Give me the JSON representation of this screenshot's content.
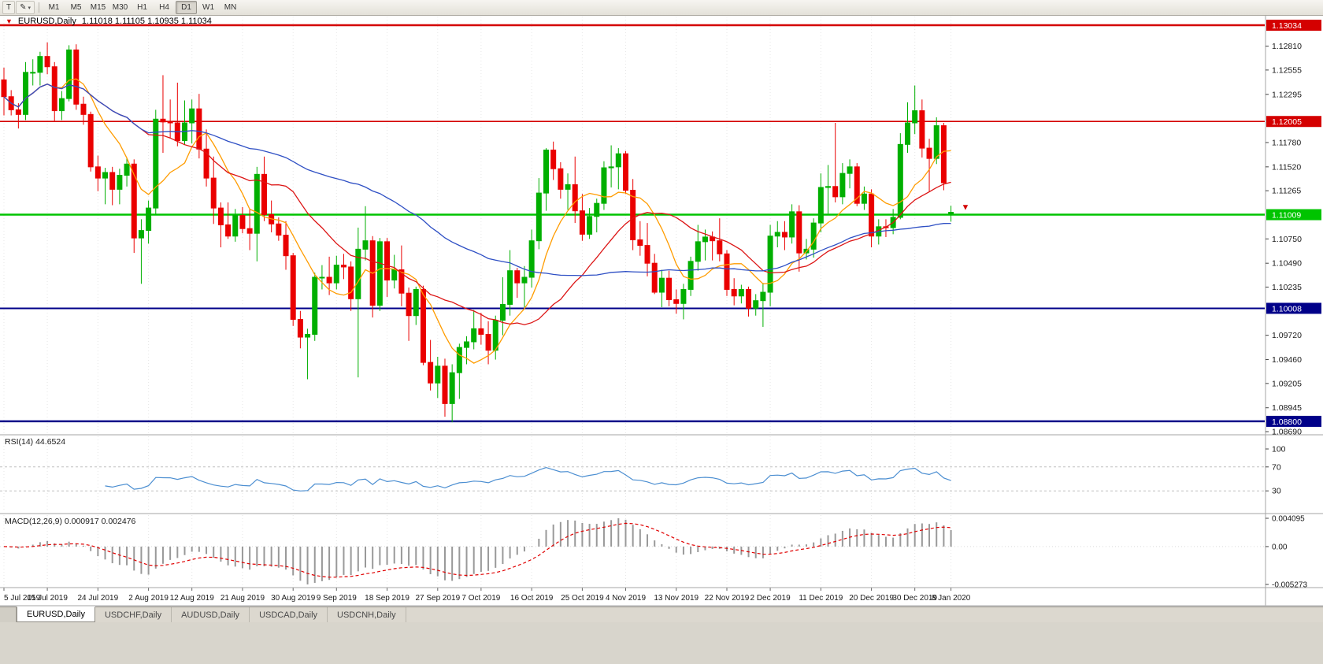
{
  "toolbar": {
    "icons": [
      {
        "name": "cursor-tool",
        "glyph": "T"
      },
      {
        "name": "draw-tool",
        "glyph": "✎"
      }
    ],
    "dropdown_caret": "▾",
    "timeframes": [
      "M1",
      "M5",
      "M15",
      "M30",
      "H1",
      "H4",
      "D1",
      "W1",
      "MN"
    ],
    "active_timeframe": "D1"
  },
  "header": {
    "marker": "▼",
    "symbol": "EURUSD,Daily",
    "ohlc_text": "1.11018 1.11105 1.10935 1.11034"
  },
  "panes": {
    "rsi_label": "RSI(14) 44.6524",
    "macd_label": "MACD(12,26,9) 0.000917 0.002476"
  },
  "tabs": [
    {
      "label": "EURUSD,Daily",
      "active": true
    },
    {
      "label": "USDCHF,Daily",
      "active": false
    },
    {
      "label": "AUDUSD,Daily",
      "active": false
    },
    {
      "label": "USDCAD,Daily",
      "active": false
    },
    {
      "label": "USDCNH,Daily",
      "active": false
    }
  ],
  "chart_data": {
    "type": "candlestick",
    "symbol": "EURUSD",
    "timeframe": "Daily",
    "current": {
      "open": 1.11018,
      "high": 1.11105,
      "low": 1.10935,
      "close": 1.11034
    },
    "colors": {
      "up": "#00AF00",
      "down": "#EA0000",
      "ma_fast": "#FF9C00",
      "ma_mid": "#DC1414",
      "ma_slow": "#2E4FC4",
      "rsi": "#4B8ED1",
      "macd_hist": "#999999",
      "macd_signal": "#E00000",
      "grid": "#E7E7E7",
      "axis_text": "#1A1A1A",
      "border": "#A6A6A6"
    },
    "moving_averages": [
      {
        "period": 8,
        "key": "ma_fast"
      },
      {
        "period": 20,
        "key": "ma_mid"
      },
      {
        "period": 50,
        "key": "ma_slow"
      }
    ],
    "hlines": [
      {
        "price": 1.13034,
        "color": "#D40000",
        "width": 2.5,
        "badge": "1.13034"
      },
      {
        "price": 1.12005,
        "color": "#D40000",
        "width": 1.6,
        "badge": "1.12005"
      },
      {
        "price": 1.11009,
        "color": "#00C400",
        "width": 2.5,
        "badge": "1.11009"
      },
      {
        "price": 1.10008,
        "color": "#000089",
        "width": 2.0,
        "badge": "1.10008"
      },
      {
        "price": 1.088,
        "color": "#000089",
        "width": 2.5,
        "badge": "1.08800"
      }
    ],
    "y_ticks": [
      "1.12810",
      "1.12555",
      "1.12295",
      "1.11780",
      "1.11520",
      "1.11265",
      "1.10750",
      "1.10490",
      "1.10235",
      "1.09720",
      "1.09460",
      "1.09205",
      "1.08945",
      "1.08690"
    ],
    "x_labels": [
      [
        "5 Jul 2019",
        0
      ],
      [
        "15 Jul 2019",
        6
      ],
      [
        "24 Jul 2019",
        13
      ],
      [
        "2 Aug 2019",
        20
      ],
      [
        "12 Aug 2019",
        26
      ],
      [
        "21 Aug 2019",
        33
      ],
      [
        "30 Aug 2019",
        40
      ],
      [
        "9 Sep 2019",
        46
      ],
      [
        "18 Sep 2019",
        53
      ],
      [
        "27 Sep 2019",
        60
      ],
      [
        "7 Oct 2019",
        66
      ],
      [
        "16 Oct 2019",
        73
      ],
      [
        "25 Oct 2019",
        80
      ],
      [
        "4 Nov 2019",
        86
      ],
      [
        "13 Nov 2019",
        93
      ],
      [
        "22 Nov 2019",
        100
      ],
      [
        "2 Dec 2019",
        106
      ],
      [
        "11 Dec 2019",
        113
      ],
      [
        "20 Dec 2019",
        120
      ],
      [
        "30 Dec 2019",
        126
      ],
      [
        "8 Jan 2020",
        131
      ]
    ],
    "marker": {
      "index": 133,
      "price": 1.1106,
      "glyph": "▼",
      "color": "#D40000"
    },
    "rsi": {
      "period": 14,
      "value": "44.6524",
      "levels": [
        70,
        30
      ],
      "ticks": [
        {
          "label": "100",
          "v": 100
        },
        {
          "label": "70",
          "v": 70
        },
        {
          "label": "30",
          "v": 30
        }
      ]
    },
    "macd": {
      "fast": 12,
      "slow": 26,
      "signal": 9,
      "main_value": "0.000917",
      "signal_value": "0.002476",
      "ticks": [
        {
          "label": "0.004095",
          "pos": "top"
        },
        {
          "label": "0.00",
          "pos": "zero"
        },
        {
          "label": "-0.005273",
          "pos": "bottom"
        }
      ]
    },
    "candles": [
      [
        1.1245,
        1.1258,
        1.1207,
        1.1227
      ],
      [
        1.1227,
        1.1234,
        1.1207,
        1.1213
      ],
      [
        1.1213,
        1.122,
        1.1193,
        1.1208
      ],
      [
        1.1208,
        1.1264,
        1.1202,
        1.1253
      ],
      [
        1.1253,
        1.1267,
        1.1239,
        1.1253
      ],
      [
        1.1253,
        1.1275,
        1.1239,
        1.127
      ],
      [
        1.127,
        1.1285,
        1.1251,
        1.1259
      ],
      [
        1.1259,
        1.1264,
        1.1201,
        1.1212
      ],
      [
        1.1212,
        1.1233,
        1.1202,
        1.1225
      ],
      [
        1.1225,
        1.1282,
        1.1222,
        1.1277
      ],
      [
        1.1277,
        1.1283,
        1.1213,
        1.1219
      ],
      [
        1.1219,
        1.1227,
        1.1197,
        1.1208
      ],
      [
        1.1208,
        1.1211,
        1.1147,
        1.1152
      ],
      [
        1.1152,
        1.1164,
        1.1126,
        1.114
      ],
      [
        1.114,
        1.1151,
        1.1112,
        1.1146
      ],
      [
        1.1146,
        1.1152,
        1.1111,
        1.1128
      ],
      [
        1.1128,
        1.115,
        1.1112,
        1.1143
      ],
      [
        1.1143,
        1.1162,
        1.1131,
        1.1155
      ],
      [
        1.1155,
        1.116,
        1.106,
        1.1076
      ],
      [
        1.1076,
        1.1096,
        1.1027,
        1.1084
      ],
      [
        1.1084,
        1.1116,
        1.107,
        1.1108
      ],
      [
        1.1108,
        1.1213,
        1.1101,
        1.1203
      ],
      [
        1.1203,
        1.125,
        1.1167,
        1.12
      ],
      [
        1.12,
        1.1224,
        1.1183,
        1.1199
      ],
      [
        1.1199,
        1.1242,
        1.1174,
        1.118
      ],
      [
        1.118,
        1.1223,
        1.1176,
        1.1199
      ],
      [
        1.1199,
        1.1224,
        1.1177,
        1.1214
      ],
      [
        1.1214,
        1.123,
        1.1161,
        1.1171
      ],
      [
        1.1171,
        1.1192,
        1.1131,
        1.114
      ],
      [
        1.114,
        1.1163,
        1.1091,
        1.1108
      ],
      [
        1.1108,
        1.1114,
        1.1066,
        1.109
      ],
      [
        1.109,
        1.1114,
        1.1075,
        1.1078
      ],
      [
        1.1078,
        1.1107,
        1.1072,
        1.11
      ],
      [
        1.11,
        1.1109,
        1.1081,
        1.1086
      ],
      [
        1.1086,
        1.1107,
        1.1063,
        1.1081
      ],
      [
        1.1081,
        1.1152,
        1.1051,
        1.1144
      ],
      [
        1.1144,
        1.1163,
        1.1094,
        1.1101
      ],
      [
        1.1101,
        1.1116,
        1.1082,
        1.1091
      ],
      [
        1.1091,
        1.1098,
        1.1073,
        1.1079
      ],
      [
        1.1079,
        1.1094,
        1.1042,
        1.1057
      ],
      [
        1.1057,
        1.106,
        1.0982,
        1.0989
      ],
      [
        1.0989,
        1.0998,
        1.0958,
        1.097
      ],
      [
        1.097,
        1.0979,
        1.0925,
        1.0973
      ],
      [
        1.0973,
        1.1039,
        1.0966,
        1.1034
      ],
      [
        1.1034,
        1.1047,
        1.1021,
        1.1034
      ],
      [
        1.1034,
        1.1056,
        1.1015,
        1.1028
      ],
      [
        1.1028,
        1.1057,
        1.1021,
        1.1047
      ],
      [
        1.1047,
        1.1059,
        1.1032,
        1.1045
      ],
      [
        1.1045,
        1.1051,
        1.0998,
        1.1011
      ],
      [
        1.1011,
        1.1087,
        1.0927,
        1.1064
      ],
      [
        1.1064,
        1.111,
        1.1052,
        1.1073
      ],
      [
        1.1073,
        1.1078,
        1.0991,
        1.1004
      ],
      [
        1.1004,
        1.1076,
        1.0998,
        1.1072
      ],
      [
        1.1072,
        1.1076,
        1.1013,
        1.1031
      ],
      [
        1.1031,
        1.1058,
        1.1022,
        1.1042
      ],
      [
        1.1042,
        1.1068,
        1.1003,
        1.1017
      ],
      [
        1.1017,
        1.1023,
        1.0966,
        1.0993
      ],
      [
        1.0993,
        1.1024,
        1.0983,
        1.1021
      ],
      [
        1.1021,
        1.1025,
        1.094,
        1.0943
      ],
      [
        1.0943,
        1.0967,
        1.0913,
        1.0921
      ],
      [
        1.0921,
        1.0949,
        1.0905,
        1.0939
      ],
      [
        1.0939,
        1.0947,
        1.0885,
        1.0899
      ],
      [
        1.0899,
        1.0941,
        1.0879,
        1.0932
      ],
      [
        1.0932,
        1.0963,
        1.0904,
        1.0959
      ],
      [
        1.0959,
        1.0971,
        1.0941,
        1.0965
      ],
      [
        1.0965,
        1.0999,
        1.0957,
        1.0979
      ],
      [
        1.0979,
        1.0996,
        1.0962,
        1.0973
      ],
      [
        1.0973,
        1.0987,
        1.0941,
        1.0956
      ],
      [
        1.0956,
        1.0993,
        1.0946,
        1.0988
      ],
      [
        1.0988,
        1.1034,
        1.0972,
        1.1005
      ],
      [
        1.1005,
        1.1063,
        1.0993,
        1.1041
      ],
      [
        1.1041,
        1.1044,
        1.1012,
        1.1028
      ],
      [
        1.1028,
        1.1046,
        1.1002,
        1.1034
      ],
      [
        1.1034,
        1.1085,
        1.1023,
        1.1073
      ],
      [
        1.1073,
        1.114,
        1.1064,
        1.1124
      ],
      [
        1.1124,
        1.1172,
        1.1105,
        1.117
      ],
      [
        1.117,
        1.1179,
        1.1138,
        1.115
      ],
      [
        1.115,
        1.1157,
        1.1118,
        1.1128
      ],
      [
        1.1128,
        1.1145,
        1.1106,
        1.1133
      ],
      [
        1.1133,
        1.1163,
        1.1092,
        1.1105
      ],
      [
        1.1105,
        1.1123,
        1.1073,
        1.108
      ],
      [
        1.108,
        1.1108,
        1.1075,
        1.1099
      ],
      [
        1.1099,
        1.1118,
        1.1082,
        1.1113
      ],
      [
        1.1113,
        1.1158,
        1.1106,
        1.1151
      ],
      [
        1.1151,
        1.1175,
        1.113,
        1.1152
      ],
      [
        1.1152,
        1.1172,
        1.1128,
        1.1166
      ],
      [
        1.1166,
        1.1169,
        1.1123,
        1.1127
      ],
      [
        1.1127,
        1.1139,
        1.1063,
        1.1074
      ],
      [
        1.1074,
        1.1094,
        1.1057,
        1.1068
      ],
      [
        1.1068,
        1.1092,
        1.1035,
        1.1049
      ],
      [
        1.1049,
        1.1059,
        1.1016,
        1.1018
      ],
      [
        1.1018,
        1.1042,
        1.1002,
        1.1033
      ],
      [
        1.1033,
        1.1041,
        1.1003,
        1.101
      ],
      [
        1.101,
        1.1021,
        1.0995,
        1.1006
      ],
      [
        1.1006,
        1.1027,
        1.0989,
        1.1021
      ],
      [
        1.1021,
        1.1056,
        1.1014,
        1.1051
      ],
      [
        1.1051,
        1.109,
        1.1041,
        1.1072
      ],
      [
        1.1072,
        1.1085,
        1.1052,
        1.1077
      ],
      [
        1.1077,
        1.1083,
        1.1052,
        1.1073
      ],
      [
        1.1073,
        1.1097,
        1.1051,
        1.1059
      ],
      [
        1.1059,
        1.1063,
        1.1014,
        1.1021
      ],
      [
        1.1021,
        1.1033,
        1.1004,
        1.1014
      ],
      [
        1.1014,
        1.1026,
        1.1006,
        1.1021
      ],
      [
        1.1021,
        1.1024,
        1.0992,
        1.1001
      ],
      [
        1.1001,
        1.1016,
        1.0993,
        1.1009
      ],
      [
        1.1009,
        1.1028,
        1.0981,
        1.1018
      ],
      [
        1.1018,
        1.109,
        1.1003,
        1.1078
      ],
      [
        1.1078,
        1.1094,
        1.1066,
        1.1082
      ],
      [
        1.1082,
        1.1094,
        1.1063,
        1.1077
      ],
      [
        1.1077,
        1.1112,
        1.107,
        1.1104
      ],
      [
        1.1104,
        1.1111,
        1.104,
        1.106
      ],
      [
        1.106,
        1.1075,
        1.1053,
        1.1064
      ],
      [
        1.1064,
        1.1097,
        1.1055,
        1.1092
      ],
      [
        1.1092,
        1.1145,
        1.1082,
        1.113
      ],
      [
        1.113,
        1.1154,
        1.1102,
        1.1131
      ],
      [
        1.1131,
        1.1199,
        1.1114,
        1.112
      ],
      [
        1.112,
        1.1156,
        1.1112,
        1.1145
      ],
      [
        1.1145,
        1.116,
        1.1129,
        1.1152
      ],
      [
        1.1152,
        1.1156,
        1.111,
        1.1113
      ],
      [
        1.1113,
        1.1131,
        1.1106,
        1.1123
      ],
      [
        1.1123,
        1.1128,
        1.1066,
        1.1078
      ],
      [
        1.1078,
        1.1096,
        1.1069,
        1.1088
      ],
      [
        1.1088,
        1.1096,
        1.1077,
        1.1087
      ],
      [
        1.1087,
        1.1107,
        1.108,
        1.1098
      ],
      [
        1.1098,
        1.1188,
        1.1096,
        1.1176
      ],
      [
        1.1176,
        1.1221,
        1.1167,
        1.1199
      ],
      [
        1.1199,
        1.1239,
        1.1187,
        1.1212
      ],
      [
        1.1212,
        1.1224,
        1.1162,
        1.1172
      ],
      [
        1.1172,
        1.1182,
        1.1125,
        1.1161
      ],
      [
        1.1161,
        1.1205,
        1.1155,
        1.1196
      ],
      [
        1.1196,
        1.1199,
        1.1127,
        1.1135
      ],
      [
        1.11018,
        1.11105,
        1.10935,
        1.11034
      ]
    ]
  }
}
